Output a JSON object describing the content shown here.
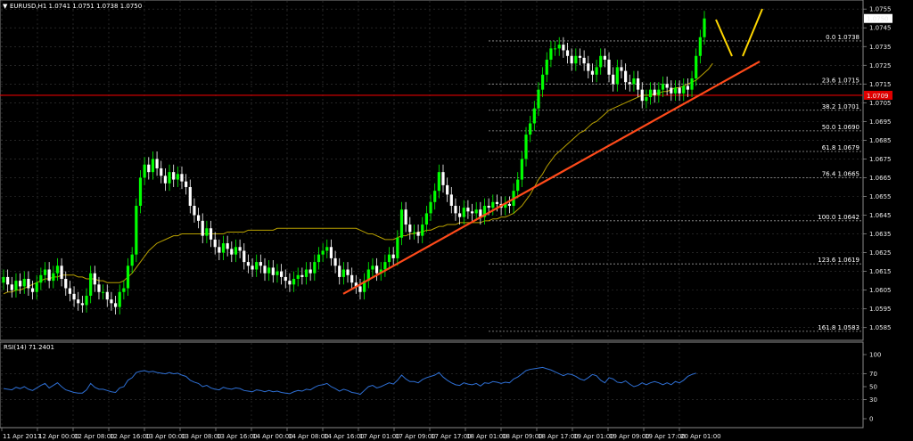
{
  "window": {
    "symbol_header": "EURUSD,H1  1.0741 1.0751 1.0738 1.0750",
    "rsi_header": "RSI(14) 71.2401"
  },
  "colors": {
    "background": "#000000",
    "grid": "#3a3a3a",
    "bull": "#00ff00",
    "bear": "#ffffff",
    "ma": "#b8a000",
    "trendline": "#ff4a1a",
    "hline": "#e00000",
    "fib": "#9a9a9a",
    "rsi": "#2e6fd4",
    "projection": "#ffd700",
    "price_tag_bg": "#e00000"
  },
  "price_axis": {
    "labels": [
      "1.0755",
      "1.0745",
      "1.0735",
      "1.0725",
      "1.0715",
      "1.0705",
      "1.0695",
      "1.0685",
      "1.0675",
      "1.0665",
      "1.0655",
      "1.0645",
      "1.0635",
      "1.0625",
      "1.0615",
      "1.0605",
      "1.0595",
      "1.0585"
    ],
    "current_price": "1.0750",
    "hline_price": "1.0709",
    "range": [
      1.0582,
      1.0757
    ]
  },
  "rsi_axis": {
    "labels": [
      "100",
      "70",
      "50",
      "30",
      "0"
    ],
    "levels": [
      100,
      70,
      50,
      30,
      0
    ]
  },
  "time_axis": {
    "labels": [
      "11 Apr 2017",
      "12 Apr 00:00",
      "12 Apr 08:00",
      "12 Apr 16:00",
      "13 Apr 00:00",
      "13 Apr 08:00",
      "13 Apr 16:00",
      "14 Apr 00:00",
      "14 Apr 08:00",
      "14 Apr 16:00",
      "17 Apr 01:00",
      "17 Apr 09:00",
      "17 Apr 17:00",
      "18 Apr 01:00",
      "18 Apr 09:00",
      "18 Apr 17:00",
      "19 Apr 01:00",
      "19 Apr 09:00",
      "19 Apr 17:00",
      "20 Apr 01:00"
    ]
  },
  "fibonacci": [
    {
      "label": "0.0 1.0738",
      "price": 1.0738
    },
    {
      "label": "23.6 1.0715",
      "price": 1.0715
    },
    {
      "label": "38.2 1.0701",
      "price": 1.0701
    },
    {
      "label": "50.0 1.0690",
      "price": 1.069
    },
    {
      "label": "61.8 1.0679",
      "price": 1.0679
    },
    {
      "label": "76.4 1.0665",
      "price": 1.0665
    },
    {
      "label": "100.0 1.0642",
      "price": 1.0642
    },
    {
      "label": "123.6 1.0619",
      "price": 1.0619
    },
    {
      "label": "161.8 1.0583",
      "price": 1.0583
    }
  ],
  "chart_data": {
    "type": "candlestick",
    "instrument": "EURUSD",
    "timeframe": "H1",
    "closes": [
      1.0612,
      1.0608,
      1.0605,
      1.061,
      1.0607,
      1.0611,
      1.0606,
      1.0604,
      1.0609,
      1.0613,
      1.0616,
      1.061,
      1.0614,
      1.0618,
      1.0611,
      1.0606,
      1.0603,
      1.06,
      1.0598,
      1.0597,
      1.0602,
      1.0614,
      1.0608,
      1.0604,
      1.0604,
      1.06,
      1.0598,
      1.0596,
      1.0604,
      1.0606,
      1.0618,
      1.0624,
      1.065,
      1.0665,
      1.0672,
      1.0668,
      1.0675,
      1.067,
      1.0666,
      1.0662,
      1.0668,
      1.0664,
      1.0667,
      1.0663,
      1.066,
      1.065,
      1.0645,
      1.0642,
      1.0634,
      1.0638,
      1.0632,
      1.0628,
      1.0625,
      1.063,
      1.0627,
      1.0624,
      1.0628,
      1.0626,
      1.062,
      1.0618,
      1.0616,
      1.062,
      1.0618,
      1.0614,
      1.0617,
      1.0613,
      1.0615,
      1.0612,
      1.061,
      1.0608,
      1.0611,
      1.0613,
      1.0612,
      1.0616,
      1.0614,
      1.062,
      1.0624,
      1.0626,
      1.0628,
      1.0622,
      1.0618,
      1.0612,
      1.0616,
      1.0613,
      1.0609,
      1.0607,
      1.0604,
      1.061,
      1.0616,
      1.0618,
      1.0614,
      1.0616,
      1.062,
      1.0624,
      1.0622,
      1.0633,
      1.0648,
      1.064,
      1.0636,
      1.0636,
      1.0634,
      1.064,
      1.0646,
      1.0652,
      1.0658,
      1.0668,
      1.0661,
      1.0656,
      1.065,
      1.0646,
      1.0644,
      1.0649,
      1.0647,
      1.0646,
      1.0648,
      1.0644,
      1.065,
      1.0649,
      1.0652,
      1.0651,
      1.0649,
      1.0651,
      1.065,
      1.0658,
      1.0664,
      1.0675,
      1.0688,
      1.0694,
      1.0702,
      1.0712,
      1.072,
      1.0728,
      1.0734,
      1.0734,
      1.0736,
      1.0733,
      1.073,
      1.0726,
      1.073,
      1.0729,
      1.0726,
      1.0722,
      1.072,
      1.0724,
      1.073,
      1.0728,
      1.072,
      1.0715,
      1.0724,
      1.0722,
      1.0716,
      1.0715,
      1.0718,
      1.0712,
      1.0706,
      1.0708,
      1.0712,
      1.0709,
      1.0712,
      1.0715,
      1.0713,
      1.071,
      1.0713,
      1.071,
      1.0714,
      1.0712,
      1.0718,
      1.073,
      1.074,
      1.075
    ],
    "ma_closes": [
      1.0603,
      1.0604,
      1.0604,
      1.0605,
      1.0605,
      1.0606,
      1.0607,
      1.0608,
      1.0609,
      1.061,
      1.0611,
      1.0611,
      1.0612,
      1.0612,
      1.0613,
      1.0613,
      1.0613,
      1.0613,
      1.0612,
      1.0612,
      1.0611,
      1.0611,
      1.0611,
      1.061,
      1.061,
      1.0609,
      1.0609,
      1.0609,
      1.0609,
      1.061,
      1.0612,
      1.0614,
      1.0617,
      1.062,
      1.0623,
      1.0626,
      1.0628,
      1.063,
      1.0631,
      1.0632,
      1.0633,
      1.0634,
      1.0634,
      1.0635,
      1.0635,
      1.0635,
      1.0635,
      1.0635,
      1.0635,
      1.0635,
      1.0635,
      1.0635,
      1.0635,
      1.0635,
      1.0636,
      1.0636,
      1.0636,
      1.0636,
      1.0636,
      1.0637,
      1.0637,
      1.0637,
      1.0637,
      1.0637,
      1.0637,
      1.0637,
      1.0638,
      1.0638,
      1.0638,
      1.0638,
      1.0638,
      1.0638,
      1.0638,
      1.0638,
      1.0638,
      1.0638,
      1.0638,
      1.0638,
      1.0638,
      1.0638,
      1.0638,
      1.0638,
      1.0638,
      1.0638,
      1.0638,
      1.0638,
      1.0637,
      1.0636,
      1.0635,
      1.0635,
      1.0634,
      1.0633,
      1.0632,
      1.0632,
      1.0632,
      1.0633,
      1.0634,
      1.0634,
      1.0635,
      1.0635,
      1.0636,
      1.0636,
      1.0637,
      1.0637,
      1.0638,
      1.0639,
      1.0639,
      1.064,
      1.064,
      1.064,
      1.0641,
      1.0641,
      1.0641,
      1.0641,
      1.0641,
      1.0641,
      1.0642,
      1.0642,
      1.0643,
      1.0643,
      1.0644,
      1.0644,
      1.0645,
      1.0646,
      1.0648,
      1.065,
      1.0653,
      1.0656,
      1.066,
      1.0664,
      1.0667,
      1.0671,
      1.0674,
      1.0677,
      1.0679,
      1.0681,
      1.0683,
      1.0685,
      1.0687,
      1.0689,
      1.069,
      1.0692,
      1.0694,
      1.0695,
      1.0697,
      1.0699,
      1.0701,
      1.0702,
      1.0703,
      1.0704,
      1.0705,
      1.0706,
      1.0707,
      1.0708,
      1.0709,
      1.0709,
      1.0709,
      1.071,
      1.071,
      1.0711,
      1.0711,
      1.0712,
      1.0713,
      1.0713,
      1.0714,
      1.0715,
      1.0716,
      1.0717,
      1.0719,
      1.0721,
      1.0723,
      1.0726
    ],
    "rsi": [
      47,
      46,
      45,
      49,
      47,
      50,
      46,
      44,
      48,
      52,
      55,
      48,
      52,
      56,
      50,
      45,
      43,
      41,
      40,
      40,
      45,
      55,
      49,
      46,
      46,
      44,
      42,
      41,
      48,
      50,
      60,
      64,
      72,
      74,
      75,
      73,
      74,
      72,
      71,
      70,
      72,
      70,
      71,
      68,
      66,
      60,
      57,
      55,
      50,
      52,
      48,
      46,
      45,
      49,
      47,
      46,
      48,
      47,
      44,
      43,
      42,
      45,
      44,
      42,
      44,
      42,
      43,
      41,
      40,
      39,
      42,
      44,
      43,
      46,
      45,
      49,
      52,
      53,
      55,
      50,
      47,
      43,
      46,
      44,
      41,
      40,
      38,
      44,
      50,
      52,
      48,
      50,
      53,
      56,
      54,
      60,
      68,
      62,
      58,
      58,
      56,
      61,
      64,
      66,
      68,
      72,
      65,
      60,
      56,
      53,
      52,
      56,
      54,
      53,
      55,
      51,
      56,
      55,
      58,
      57,
      55,
      57,
      56,
      62,
      65,
      70,
      75,
      77,
      78,
      79,
      80,
      78,
      76,
      73,
      70,
      67,
      70,
      69,
      66,
      62,
      60,
      64,
      69,
      67,
      60,
      56,
      64,
      62,
      57,
      56,
      59,
      54,
      50,
      52,
      56,
      53,
      56,
      58,
      56,
      53,
      56,
      53,
      58,
      56,
      60,
      66,
      69,
      71
    ],
    "trendline_prices": [
      1.0603,
      1.0727
    ],
    "rsi_last": 71.2401
  }
}
